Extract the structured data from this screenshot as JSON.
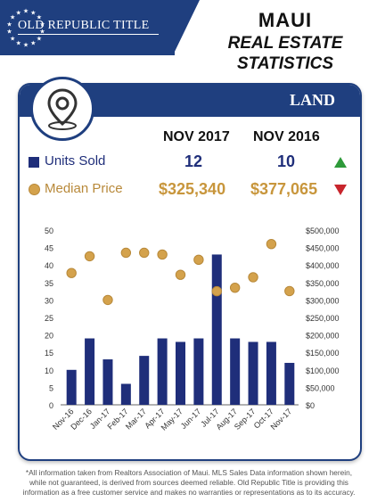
{
  "header": {
    "brand": "OLD REPUBLIC TITLE",
    "title_1": "MAUI",
    "title_2": "REAL ESTATE",
    "title_3": "STATISTICS"
  },
  "card": {
    "tag": "LAND",
    "col_1": "NOV 2017",
    "col_2": "NOV 2016",
    "rows": [
      {
        "label": "Units Sold",
        "v1": "12",
        "v2": "10",
        "trend": "up"
      },
      {
        "label": "Median Price",
        "v1": "$325,340",
        "v2": "$377,065",
        "trend": "down"
      }
    ]
  },
  "colors": {
    "navy": "#1f3f7f",
    "bar": "#1f2e7a",
    "gold": "#d4a24c",
    "up": "#2e9a3a",
    "down": "#c8252c"
  },
  "chart_data": {
    "type": "bar",
    "categories": [
      "Nov-16",
      "Dec-16",
      "Jan-17",
      "Feb-17",
      "Mar-17",
      "Apr-17",
      "May-17",
      "Jun-17",
      "Jul-17",
      "Aug-17",
      "Sep-17",
      "Oct-17",
      "Nov-17"
    ],
    "series": [
      {
        "name": "Units Sold",
        "type": "bar",
        "axis": "left",
        "values": [
          10,
          19,
          13,
          6,
          14,
          19,
          18,
          19,
          43,
          19,
          18,
          18,
          12
        ]
      },
      {
        "name": "Median Price",
        "type": "scatter",
        "axis": "right",
        "values": [
          377065,
          425000,
          300000,
          435000,
          435000,
          430000,
          372000,
          415000,
          325000,
          335000,
          365000,
          460000,
          325340
        ]
      }
    ],
    "y_left": {
      "ticks": [
        "50",
        "45",
        "40",
        "35",
        "30",
        "25",
        "20",
        "15",
        "10",
        "5",
        "0"
      ],
      "ylim": [
        0,
        50
      ]
    },
    "y_right": {
      "ticks": [
        "$500,000",
        "$450,000",
        "$400,000",
        "$350,000",
        "$300,000",
        "$250,000",
        "$200,000",
        "$150,000",
        "$100,000",
        "$50,000",
        "$0"
      ],
      "ylim": [
        0,
        500000
      ]
    },
    "grid": false,
    "legend": "none"
  },
  "footer": {
    "line_1": "*All information taken from Realtors Association of Maui.  MLS Sales Data information shown herein,",
    "line_2": "while not guaranteed,  is derived from sources deemed reliable.  Old Republic Title is providing this",
    "line_3": "information as a free customer service and makes no warranties or representations as to its accuracy."
  }
}
